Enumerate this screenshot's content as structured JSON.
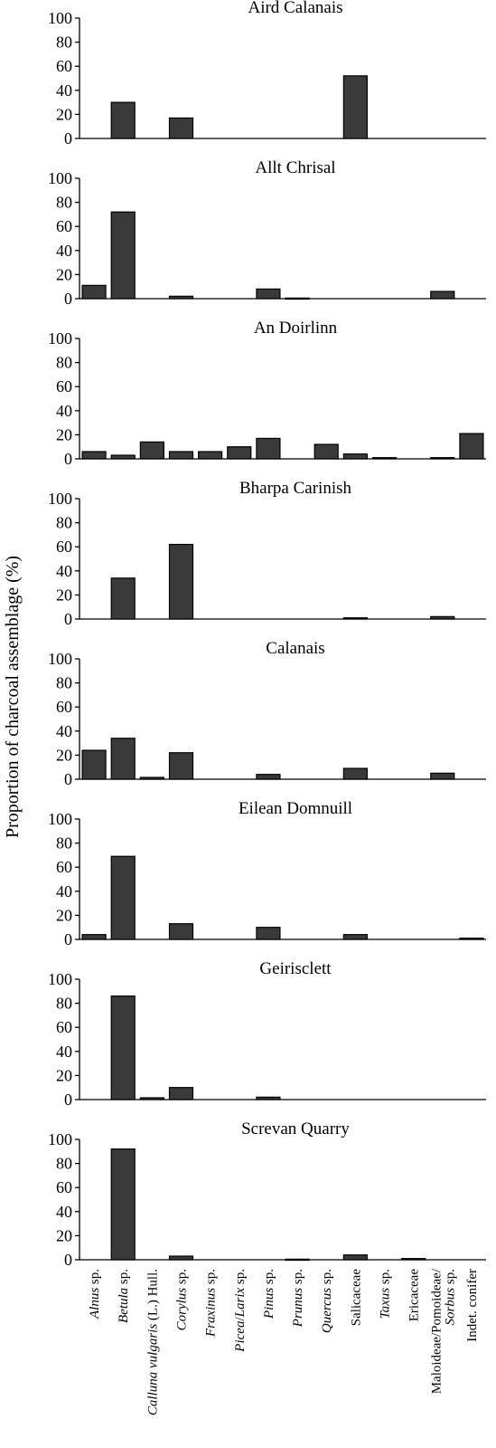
{
  "chart_data": {
    "type": "bar",
    "ylabel": "Proportion of charcoal assemblage (%)",
    "ylim": [
      0,
      100
    ],
    "yticks": [
      0,
      20,
      40,
      60,
      80,
      100
    ],
    "categories": [
      {
        "parts": [
          {
            "t": "Alnus",
            "i": true
          },
          {
            "t": " sp.",
            "i": false
          }
        ]
      },
      {
        "parts": [
          {
            "t": "Betula",
            "i": true
          },
          {
            "t": " sp.",
            "i": false
          }
        ]
      },
      {
        "parts": [
          {
            "t": "Calluna vulgaris",
            "i": true
          },
          {
            "t": " (L.) Hull.",
            "i": false
          }
        ]
      },
      {
        "parts": [
          {
            "t": "Corylus",
            "i": true
          },
          {
            "t": " sp.",
            "i": false
          }
        ]
      },
      {
        "parts": [
          {
            "t": "Fraxinus",
            "i": true
          },
          {
            "t": " sp.",
            "i": false
          }
        ]
      },
      {
        "parts": [
          {
            "t": "Picea",
            "i": true
          },
          {
            "t": "/",
            "i": false
          },
          {
            "t": "Larix",
            "i": true
          },
          {
            "t": " sp.",
            "i": false
          }
        ]
      },
      {
        "parts": [
          {
            "t": "Pinus",
            "i": true
          },
          {
            "t": " sp.",
            "i": false
          }
        ]
      },
      {
        "parts": [
          {
            "t": "Prunus",
            "i": true
          },
          {
            "t": " sp.",
            "i": false
          }
        ]
      },
      {
        "parts": [
          {
            "t": "Quercus",
            "i": true
          },
          {
            "t": " sp.",
            "i": false
          }
        ]
      },
      {
        "parts": [
          {
            "t": "Salicaceae",
            "i": false
          }
        ]
      },
      {
        "parts": [
          {
            "t": "Taxus",
            "i": true
          },
          {
            "t": " sp.",
            "i": false
          }
        ]
      },
      {
        "parts": [
          {
            "t": "Ericaceae",
            "i": false
          }
        ]
      },
      {
        "lines": [
          [
            {
              "t": "Maloideae/Pomoideae/",
              "i": false
            }
          ],
          [
            {
              "t": "Sorbus",
              "i": true
            },
            {
              "t": " sp.",
              "i": false
            }
          ]
        ]
      },
      {
        "parts": [
          {
            "t": "Indet. conifer",
            "i": false
          }
        ]
      }
    ],
    "panels": [
      {
        "title": "Aird Calanais",
        "values": [
          0,
          30,
          0,
          17,
          0,
          0,
          0,
          0,
          0,
          52,
          0,
          0,
          0,
          0
        ]
      },
      {
        "title": "Allt Chrisal",
        "values": [
          11,
          72,
          0,
          2,
          0,
          0,
          8,
          0.5,
          0,
          0,
          0,
          0,
          6,
          0
        ]
      },
      {
        "title": "An Doirlinn",
        "values": [
          6,
          3,
          14,
          6,
          6,
          10,
          17,
          0,
          12,
          4,
          1,
          0,
          1,
          21
        ]
      },
      {
        "title": "Bharpa Carinish",
        "values": [
          0,
          34,
          0,
          62,
          0,
          0,
          0,
          0,
          0,
          1,
          0,
          0,
          2,
          0
        ]
      },
      {
        "title": "Calanais",
        "values": [
          24,
          34,
          1.5,
          22,
          0,
          0,
          4,
          0,
          0,
          9,
          0,
          0,
          5,
          0
        ]
      },
      {
        "title": "Eilean Domnuill",
        "values": [
          4,
          69,
          0,
          13,
          0,
          0,
          10,
          0,
          0,
          4,
          0,
          0,
          0,
          1
        ]
      },
      {
        "title": "Geirisclett",
        "values": [
          0,
          86,
          1.5,
          10,
          0,
          0,
          2,
          0,
          0,
          0,
          0,
          0,
          0,
          0
        ]
      },
      {
        "title": "Screvan Quarry",
        "values": [
          0,
          92,
          0,
          3,
          0,
          0,
          0,
          0.5,
          0,
          4,
          0,
          1,
          0,
          0
        ]
      }
    ]
  }
}
